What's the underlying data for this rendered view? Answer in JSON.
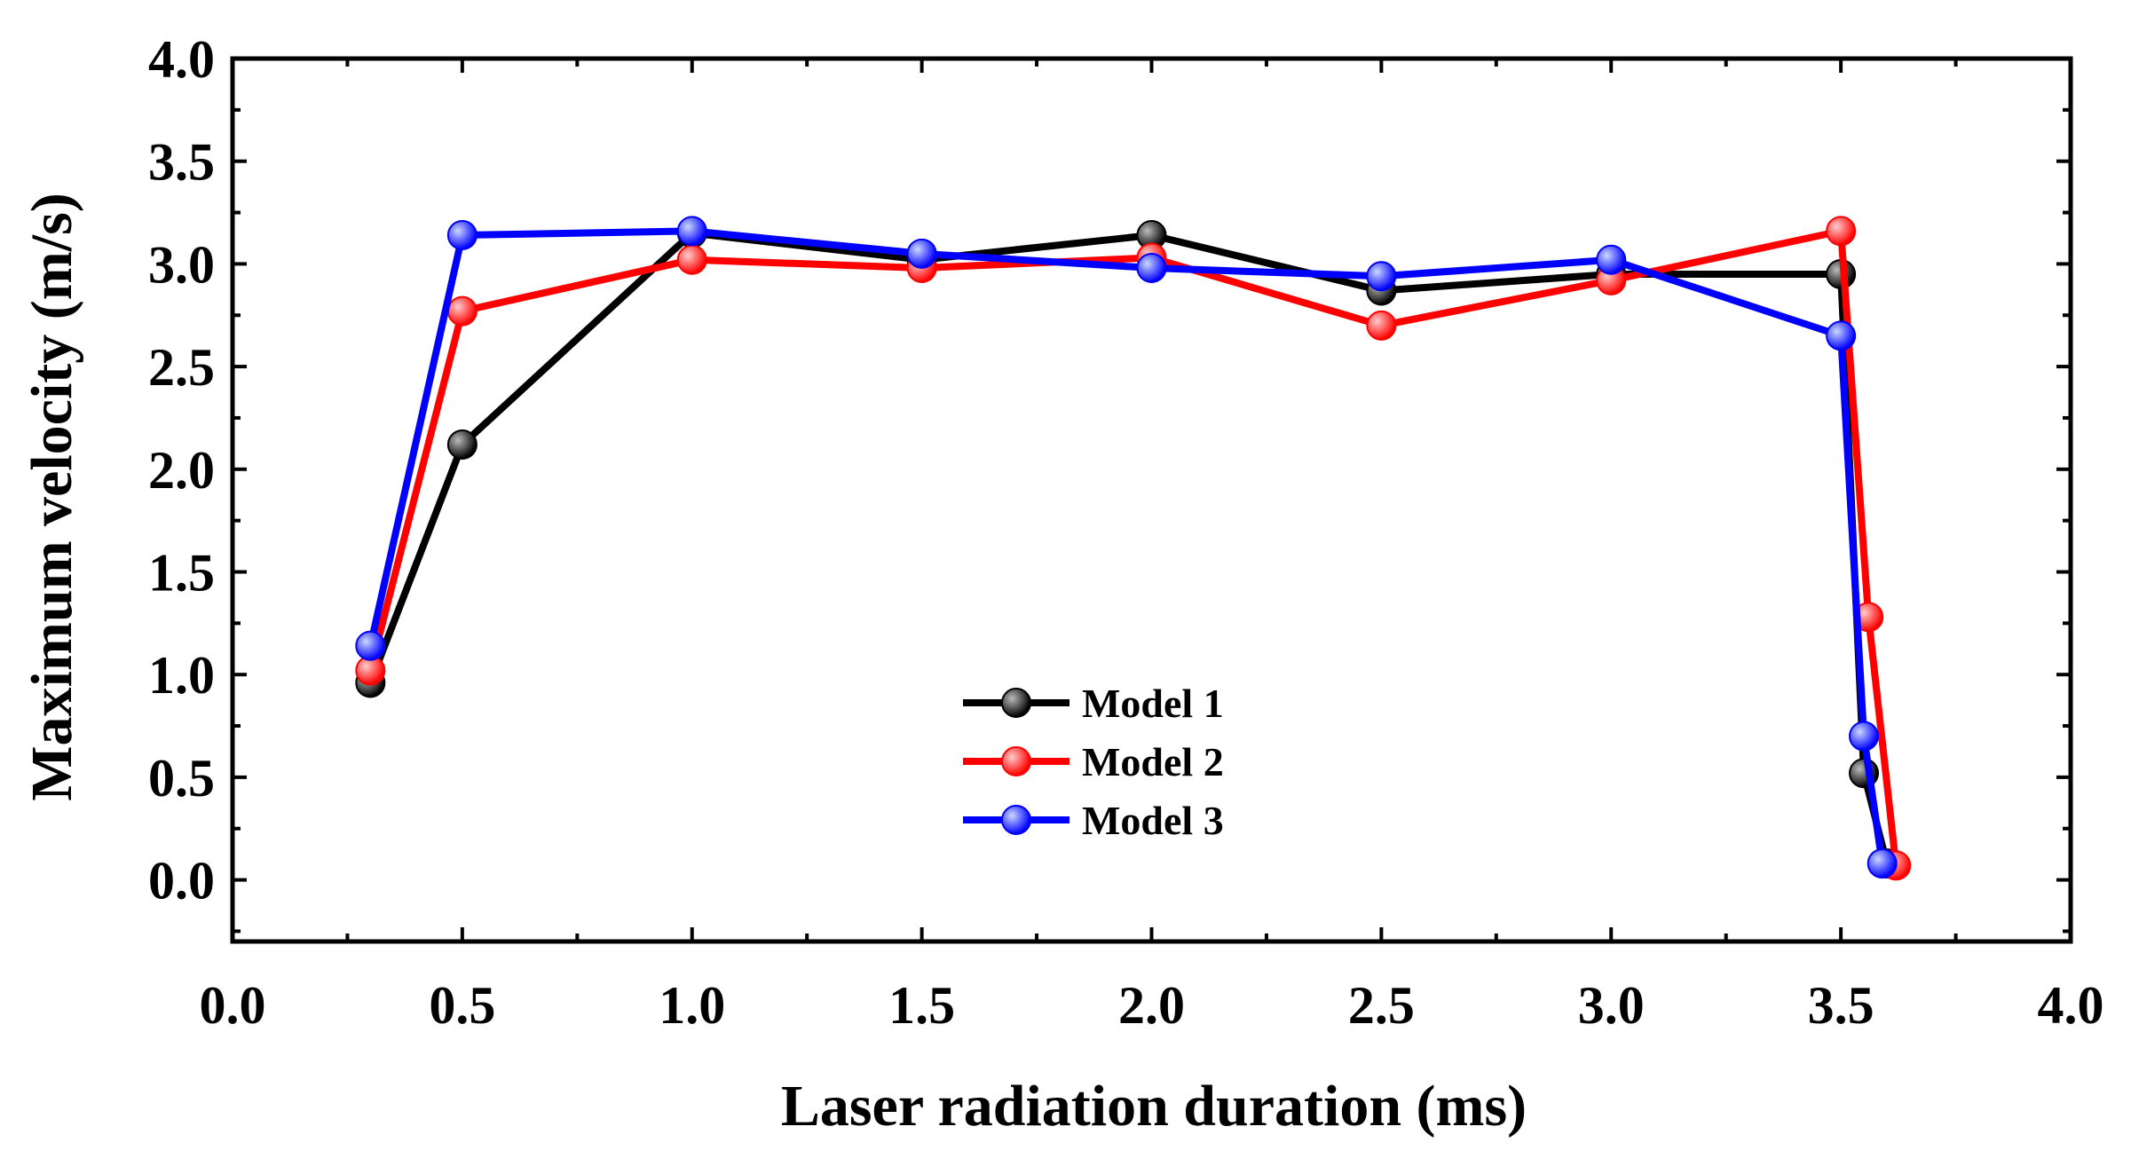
{
  "chart_data": {
    "type": "line",
    "title": "",
    "xlabel": "Laser radiation duration (ms)",
    "ylabel": "Maximum velocity (m/s)",
    "xlim": [
      0.0,
      4.0
    ],
    "ylim": [
      -0.3,
      4.0
    ],
    "x_ticks": [
      "0.0",
      "0.5",
      "1.0",
      "1.5",
      "2.0",
      "2.5",
      "3.0",
      "3.5",
      "4.0"
    ],
    "y_ticks": [
      "0.0",
      "0.5",
      "1.0",
      "1.5",
      "2.0",
      "2.5",
      "3.0",
      "3.5",
      "4.0"
    ],
    "x_tick_values": [
      0.0,
      0.5,
      1.0,
      1.5,
      2.0,
      2.5,
      3.0,
      3.5,
      4.0
    ],
    "y_tick_values": [
      0.0,
      0.5,
      1.0,
      1.5,
      2.0,
      2.5,
      3.0,
      3.5,
      4.0
    ],
    "legend_position": "center-left",
    "series": [
      {
        "name": "Model 1",
        "color": "#000000",
        "x": [
          0.3,
          0.5,
          1.0,
          1.5,
          2.0,
          2.5,
          3.0,
          3.5,
          3.55,
          3.6
        ],
        "y": [
          0.96,
          2.12,
          3.15,
          3.02,
          3.14,
          2.87,
          2.95,
          2.95,
          0.52,
          0.08
        ]
      },
      {
        "name": "Model 2",
        "color": "#ff0000",
        "x": [
          0.3,
          0.5,
          1.0,
          1.5,
          2.0,
          2.5,
          3.0,
          3.5,
          3.56,
          3.62
        ],
        "y": [
          1.02,
          2.77,
          3.02,
          2.98,
          3.03,
          2.7,
          2.92,
          3.16,
          1.28,
          0.07
        ]
      },
      {
        "name": "Model 3",
        "color": "#0000ff",
        "x": [
          0.3,
          0.5,
          1.0,
          1.5,
          2.0,
          2.5,
          3.0,
          3.5,
          3.55,
          3.59
        ],
        "y": [
          1.14,
          3.14,
          3.16,
          3.05,
          2.98,
          2.94,
          3.02,
          2.65,
          0.7,
          0.08
        ]
      }
    ]
  }
}
